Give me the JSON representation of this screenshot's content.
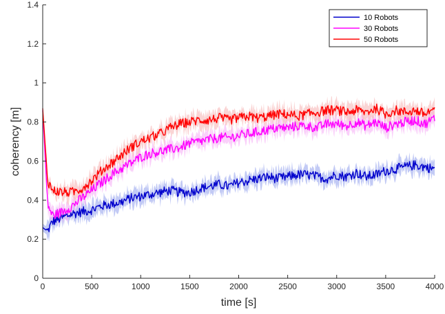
{
  "chart_data": {
    "type": "line",
    "title": "",
    "xlabel": "time [s]",
    "ylabel": "coherency [m]",
    "xlim": [
      0,
      4000
    ],
    "ylim": [
      0,
      1.4
    ],
    "xticks": [
      "0",
      "500",
      "1000",
      "1500",
      "2000",
      "2500",
      "3000",
      "3500",
      "4000"
    ],
    "yticks": [
      "0",
      "0.2",
      "0.4",
      "0.6",
      "0.8",
      "1",
      "1.2",
      "1.4"
    ],
    "grid": false,
    "legend_position": "top-right",
    "series": [
      {
        "name": "10 Robots",
        "color": "#0000cc",
        "band_color": "#9aa6ee",
        "x": [
          0,
          50,
          100,
          200,
          300,
          400,
          500,
          600,
          700,
          800,
          900,
          1000,
          1100,
          1200,
          1300,
          1400,
          1500,
          1600,
          1700,
          1800,
          1900,
          2000,
          2100,
          2200,
          2300,
          2400,
          2500,
          2600,
          2700,
          2800,
          2900,
          3000,
          3100,
          3200,
          3300,
          3400,
          3500,
          3600,
          3700,
          3800,
          3900,
          4000
        ],
        "y": [
          0.26,
          0.24,
          0.29,
          0.31,
          0.33,
          0.34,
          0.35,
          0.37,
          0.38,
          0.39,
          0.41,
          0.42,
          0.43,
          0.44,
          0.45,
          0.44,
          0.44,
          0.46,
          0.47,
          0.48,
          0.47,
          0.49,
          0.5,
          0.51,
          0.52,
          0.51,
          0.52,
          0.53,
          0.53,
          0.52,
          0.51,
          0.53,
          0.52,
          0.54,
          0.52,
          0.53,
          0.55,
          0.56,
          0.57,
          0.58,
          0.57,
          0.56
        ]
      },
      {
        "name": "30 Robots",
        "color": "#ff00ff",
        "band_color": "#f7b0f7",
        "x": [
          0,
          50,
          100,
          200,
          300,
          400,
          500,
          600,
          700,
          800,
          900,
          1000,
          1100,
          1200,
          1300,
          1400,
          1500,
          1600,
          1700,
          1800,
          1900,
          2000,
          2100,
          2200,
          2300,
          2400,
          2500,
          2600,
          2700,
          2800,
          2900,
          3000,
          3100,
          3200,
          3300,
          3400,
          3500,
          3600,
          3700,
          3800,
          3900,
          4000
        ],
        "y": [
          0.86,
          0.38,
          0.32,
          0.34,
          0.37,
          0.41,
          0.45,
          0.49,
          0.53,
          0.56,
          0.59,
          0.62,
          0.64,
          0.65,
          0.66,
          0.67,
          0.69,
          0.7,
          0.71,
          0.72,
          0.72,
          0.73,
          0.74,
          0.75,
          0.76,
          0.77,
          0.77,
          0.78,
          0.78,
          0.77,
          0.79,
          0.79,
          0.78,
          0.8,
          0.78,
          0.8,
          0.77,
          0.79,
          0.8,
          0.81,
          0.79,
          0.82
        ]
      },
      {
        "name": "50 Robots",
        "color": "#ff0000",
        "band_color": "#f7b8b8",
        "x": [
          0,
          50,
          100,
          200,
          300,
          400,
          500,
          600,
          700,
          800,
          900,
          1000,
          1100,
          1200,
          1300,
          1400,
          1500,
          1600,
          1700,
          1800,
          1900,
          2000,
          2100,
          2200,
          2300,
          2400,
          2500,
          2600,
          2700,
          2800,
          2900,
          3000,
          3100,
          3200,
          3300,
          3400,
          3500,
          3600,
          3700,
          3800,
          3900,
          4000
        ],
        "y": [
          0.87,
          0.5,
          0.45,
          0.44,
          0.44,
          0.46,
          0.5,
          0.55,
          0.59,
          0.63,
          0.67,
          0.7,
          0.72,
          0.74,
          0.77,
          0.79,
          0.8,
          0.81,
          0.81,
          0.82,
          0.81,
          0.82,
          0.83,
          0.82,
          0.83,
          0.84,
          0.84,
          0.83,
          0.84,
          0.85,
          0.86,
          0.86,
          0.85,
          0.86,
          0.85,
          0.87,
          0.84,
          0.86,
          0.85,
          0.86,
          0.84,
          0.87
        ]
      }
    ]
  }
}
